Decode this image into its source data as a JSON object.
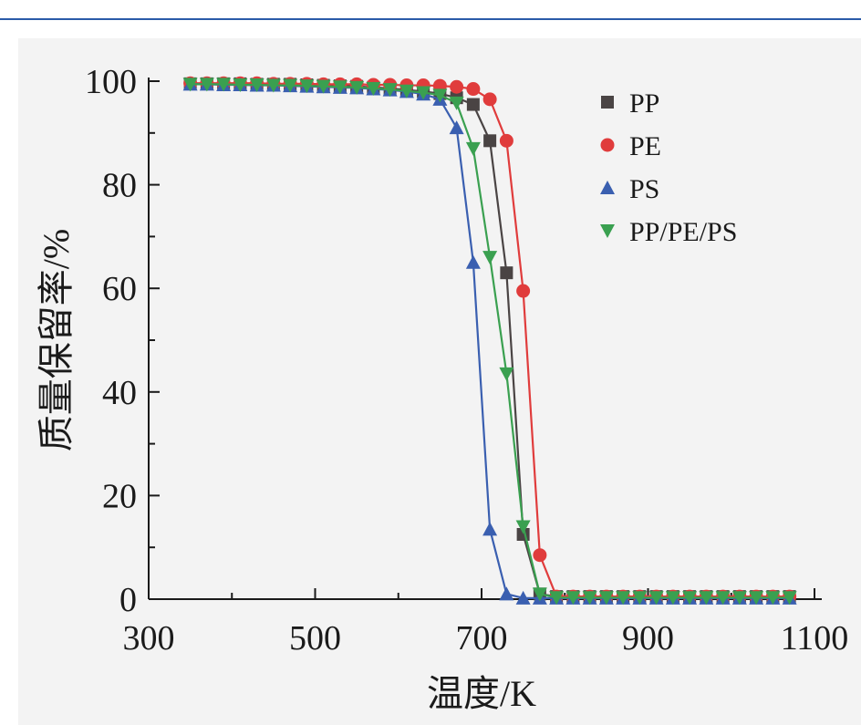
{
  "chart_data": {
    "type": "line",
    "xlabel": "温度/K",
    "ylabel": "质量保留率/%",
    "xlim": [
      300,
      1100
    ],
    "ylim": [
      0,
      100
    ],
    "xticks": [
      "300",
      "500",
      "700",
      "900",
      "1100"
    ],
    "yticks": [
      "0",
      "20",
      "40",
      "60",
      "80",
      "100"
    ],
    "legend_position": "top-right",
    "grid": false,
    "series": [
      {
        "name": "PP",
        "color": "#4a4444",
        "marker": "square",
        "x": [
          350,
          370,
          390,
          410,
          430,
          450,
          470,
          490,
          510,
          530,
          550,
          570,
          590,
          610,
          630,
          650,
          670,
          690,
          710,
          730,
          750,
          770,
          790,
          810,
          830,
          850,
          870,
          890,
          910,
          930,
          950,
          970,
          990,
          1010,
          1030,
          1050,
          1070
        ],
        "values": [
          99.5,
          99.5,
          99.5,
          99.5,
          99.4,
          99.4,
          99.4,
          99.3,
          99.2,
          99.1,
          99.0,
          98.8,
          98.6,
          98.3,
          98.0,
          97.6,
          96.8,
          95.5,
          88.5,
          63.0,
          12.5,
          1.0,
          0.5,
          0.5,
          0.5,
          0.5,
          0.5,
          0.5,
          0.5,
          0.5,
          0.5,
          0.5,
          0.5,
          0.5,
          0.5,
          0.5,
          0.5
        ]
      },
      {
        "name": "PE",
        "color": "#e03c3c",
        "marker": "circle",
        "x": [
          350,
          370,
          390,
          410,
          430,
          450,
          470,
          490,
          510,
          530,
          550,
          570,
          590,
          610,
          630,
          650,
          670,
          690,
          710,
          730,
          750,
          770,
          790,
          810,
          830,
          850,
          870,
          890,
          910,
          930,
          950,
          970,
          990,
          1010,
          1030,
          1050,
          1070
        ],
        "values": [
          99.6,
          99.6,
          99.6,
          99.6,
          99.6,
          99.5,
          99.5,
          99.5,
          99.4,
          99.4,
          99.4,
          99.3,
          99.3,
          99.2,
          99.2,
          99.1,
          98.9,
          98.5,
          96.5,
          88.5,
          59.5,
          8.5,
          0.5,
          0.5,
          0.5,
          0.5,
          0.5,
          0.5,
          0.5,
          0.5,
          0.5,
          0.5,
          0.5,
          0.5,
          0.5,
          0.5,
          0.5
        ]
      },
      {
        "name": "PS",
        "color": "#3a5fb0",
        "marker": "triangle-up",
        "x": [
          350,
          370,
          390,
          410,
          430,
          450,
          470,
          490,
          510,
          530,
          550,
          570,
          590,
          610,
          630,
          650,
          670,
          690,
          710,
          730,
          750,
          770,
          790,
          810,
          830,
          850,
          870,
          890,
          910,
          930,
          950,
          970,
          990,
          1010,
          1030,
          1050,
          1070
        ],
        "values": [
          99.4,
          99.4,
          99.3,
          99.3,
          99.2,
          99.2,
          99.1,
          99.0,
          98.9,
          98.8,
          98.7,
          98.5,
          98.3,
          98.0,
          97.5,
          96.5,
          91.0,
          65.0,
          13.5,
          1.0,
          0.2,
          0.2,
          0.2,
          0.2,
          0.2,
          0.2,
          0.2,
          0.2,
          0.2,
          0.2,
          0.2,
          0.2,
          0.2,
          0.2,
          0.2,
          0.2,
          0.2
        ]
      },
      {
        "name": "PP/PE/PS",
        "color": "#3aa050",
        "marker": "triangle-down",
        "x": [
          350,
          370,
          390,
          410,
          430,
          450,
          470,
          490,
          510,
          530,
          550,
          570,
          590,
          610,
          630,
          650,
          670,
          690,
          710,
          730,
          750,
          770,
          790,
          810,
          830,
          850,
          870,
          890,
          910,
          930,
          950,
          970,
          990,
          1010,
          1030,
          1050,
          1070
        ],
        "values": [
          99.4,
          99.4,
          99.4,
          99.3,
          99.3,
          99.2,
          99.2,
          99.1,
          99.0,
          98.9,
          98.8,
          98.6,
          98.4,
          98.1,
          97.8,
          97.3,
          95.8,
          87.0,
          66.0,
          43.5,
          14.0,
          1.0,
          0.3,
          0.3,
          0.3,
          0.3,
          0.3,
          0.3,
          0.3,
          0.3,
          0.3,
          0.3,
          0.3,
          0.3,
          0.3,
          0.3,
          0.3
        ]
      }
    ]
  }
}
